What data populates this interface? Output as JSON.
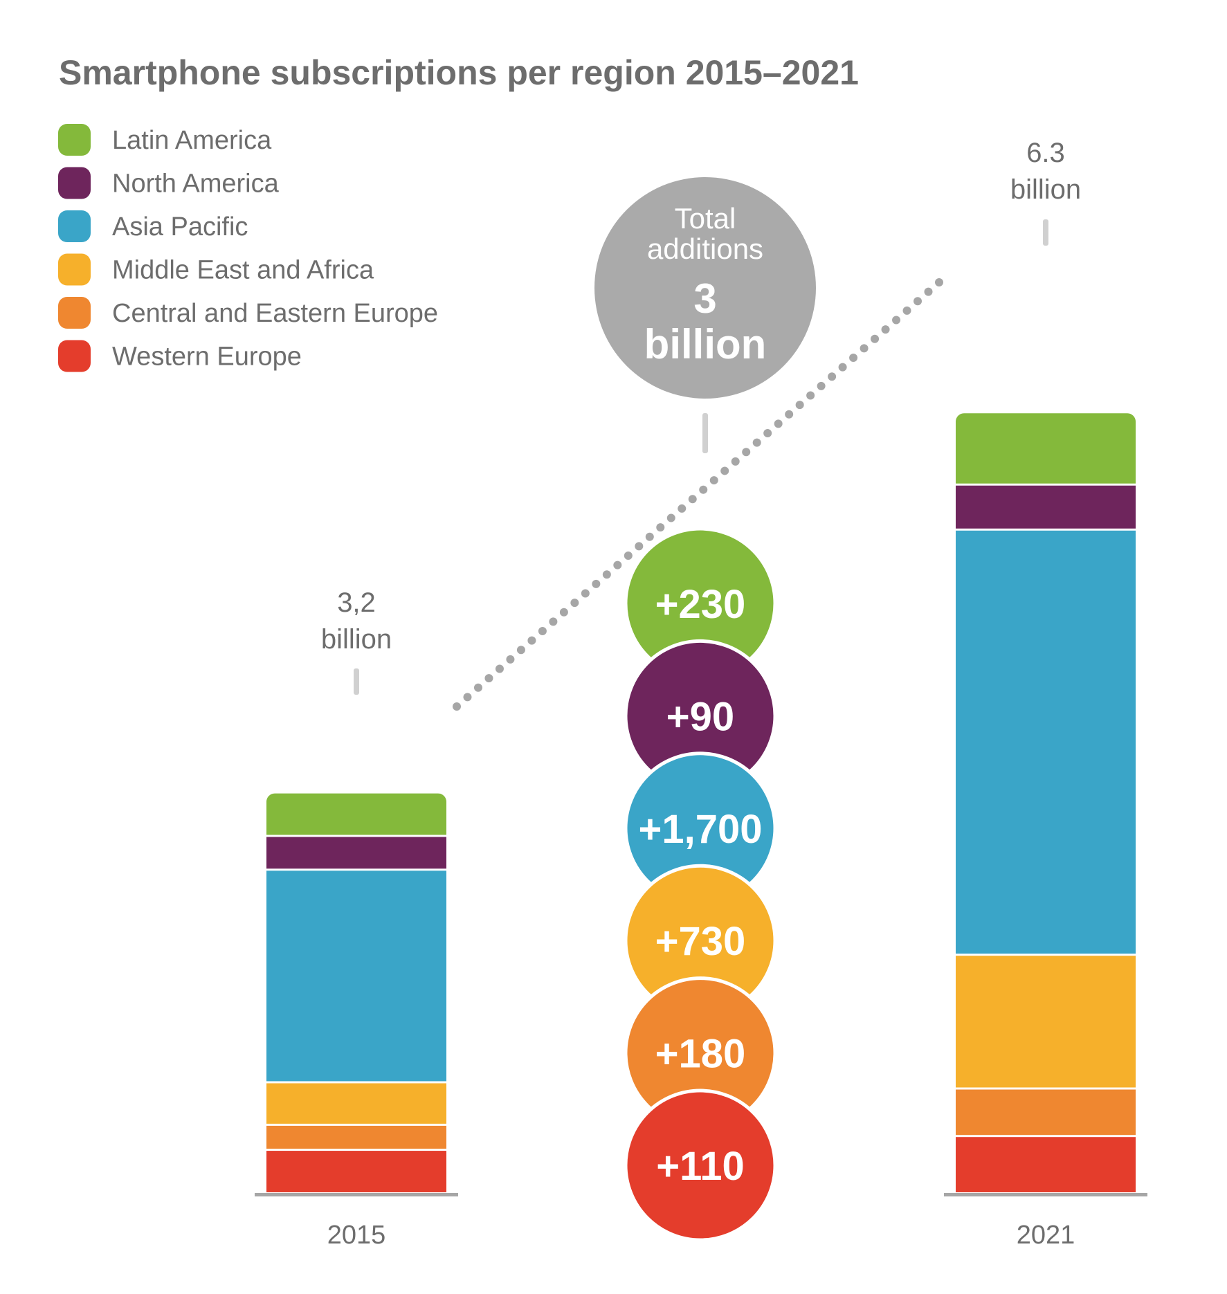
{
  "chart_data": {
    "type": "bar",
    "stacked": true,
    "title": "Smartphone subscriptions per region 2015–2021",
    "unit": "million subscriptions",
    "categories": [
      "2015",
      "2021"
    ],
    "totals_labels": [
      {
        "value": "3,2",
        "unit": "billion"
      },
      {
        "value": "6.3",
        "unit": "billion"
      }
    ],
    "series": [
      {
        "name": "Latin America",
        "color": "#84b93b",
        "values": [
          340,
          570
        ],
        "addition": "+230"
      },
      {
        "name": "North America",
        "color": "#6e255c",
        "values": [
          270,
          360
        ],
        "addition": "+90"
      },
      {
        "name": "Asia Pacific",
        "color": "#3aa5c8",
        "values": [
          1700,
          3400
        ],
        "addition": "+1,700"
      },
      {
        "name": "Middle East and Africa",
        "color": "#f6b02b",
        "values": [
          340,
          1070
        ],
        "addition": "+730"
      },
      {
        "name": "Central and Eastern Europe",
        "color": "#ef8730",
        "values": [
          200,
          380
        ],
        "addition": "+180"
      },
      {
        "name": "Western Europe",
        "color": "#e43d2c",
        "values": [
          340,
          450
        ],
        "addition": "+110"
      }
    ],
    "total_additions": {
      "line1": "Total",
      "line2": "additions",
      "value": "3",
      "unit": "billion",
      "color": "#aaaaaa"
    },
    "legend": "top-left",
    "grid": false
  }
}
